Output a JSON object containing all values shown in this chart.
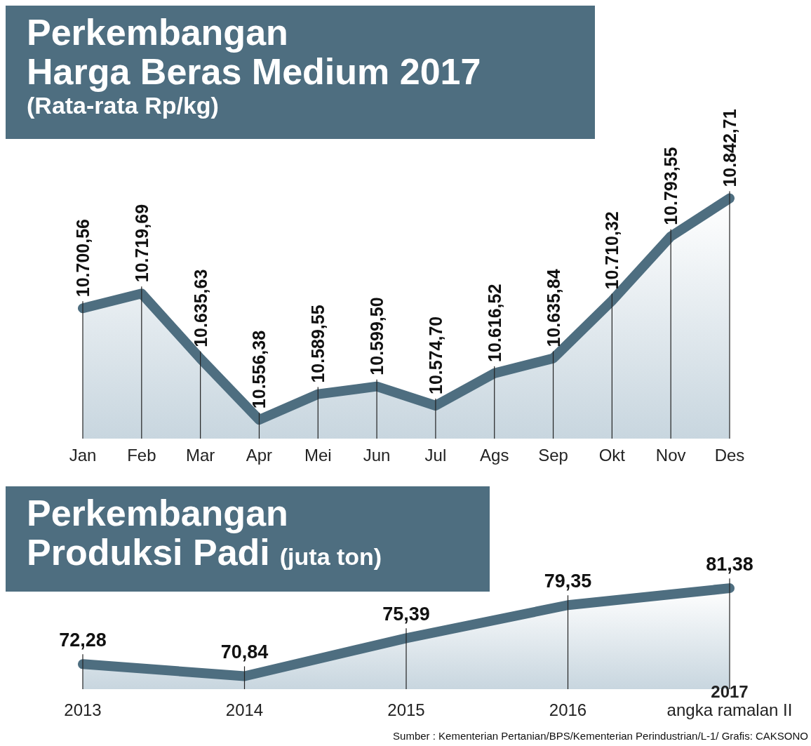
{
  "chart_data": [
    {
      "type": "area",
      "title": "Perkembangan\nHarga Beras Medium 2017",
      "subtitle": "(Rata-rata Rp/kg)",
      "categories": [
        "Jan",
        "Feb",
        "Mar",
        "Apr",
        "Mei",
        "Jun",
        "Jul",
        "Ags",
        "Sep",
        "Okt",
        "Nov",
        "Des"
      ],
      "series": [
        {
          "color": "#4e6e80",
          "values": [
            10700.56,
            10719.69,
            10635.63,
            10556.38,
            10589.55,
            10599.5,
            10574.7,
            10616.52,
            10635.84,
            10710.32,
            10793.55,
            10842.71
          ],
          "value_labels": [
            "10.700,56",
            "10.719,69",
            "10.635,63",
            "10.556,38",
            "10.589,55",
            "10.599,50",
            "10.574,70",
            "10.616,52",
            "10.635,84",
            "10.710,32",
            "10.793,55",
            "10.842,71"
          ]
        }
      ],
      "grid": false,
      "legend": false
    },
    {
      "type": "area",
      "title": "Perkembangan\nProduksi Padi",
      "subtitle": "(juta ton)",
      "categories": [
        "2013",
        "2014",
        "2015",
        "2016",
        "2017\nangka ramalan II"
      ],
      "series": [
        {
          "color": "#4e6e80",
          "values": [
            72.28,
            70.84,
            75.39,
            79.35,
            81.38
          ],
          "value_labels": [
            "72,28",
            "70,84",
            "75,39",
            "79,35",
            "81,38"
          ]
        }
      ],
      "grid": false,
      "legend": false,
      "annotations": [
        "Sumber : Kementerian Pertanian/BPS/Kementerian Perindustrian/L-1/ Grafis: CAKSONO"
      ]
    }
  ]
}
